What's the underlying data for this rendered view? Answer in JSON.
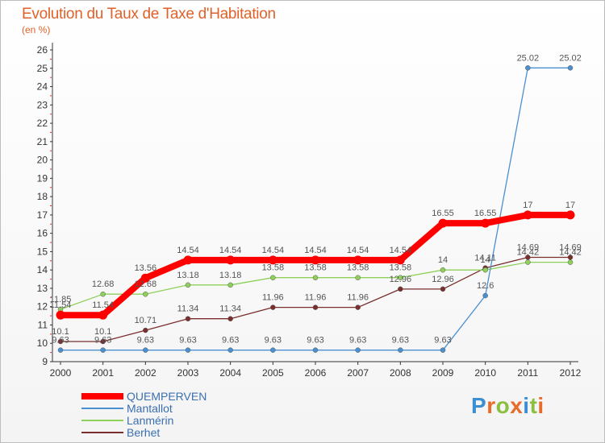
{
  "header": {
    "title": "Evolution du Taux de Taxe d'Habitation",
    "subtitle": "(en %)"
  },
  "logo": {
    "letters": [
      {
        "ch": "P",
        "color": "#3b8fd0"
      },
      {
        "ch": "r",
        "color": "#e86b2a"
      },
      {
        "ch": "o",
        "color": "#8bbf3f"
      },
      {
        "ch": "x",
        "color": "#e86b2a"
      },
      {
        "ch": "i",
        "color": "#3b8fd0"
      },
      {
        "ch": "t",
        "color": "#8bbf3f"
      },
      {
        "ch": "i",
        "color": "#e86b2a"
      }
    ]
  },
  "chart_data": {
    "type": "line",
    "title": "Evolution du Taux de Taxe d'Habitation",
    "subtitle": "(en %)",
    "xlabel": "",
    "ylabel": "",
    "x": [
      "2000",
      "2001",
      "2002",
      "2003",
      "2004",
      "2005",
      "2006",
      "2007",
      "2008",
      "2009",
      "2010",
      "2011",
      "2012"
    ],
    "ylim": [
      9,
      26
    ],
    "yticks": [
      9,
      10,
      11,
      12,
      13,
      14,
      15,
      16,
      17,
      18,
      19,
      20,
      21,
      22,
      23,
      24,
      25,
      26
    ],
    "grid": false,
    "legend": "bottom-left",
    "series": [
      {
        "name": "QUEMPERVEN",
        "color": "#ff0000",
        "values": [
          11.54,
          11.54,
          13.56,
          14.54,
          14.54,
          14.54,
          14.54,
          14.54,
          14.54,
          16.55,
          16.55,
          17,
          17
        ],
        "labels": [
          "11.54",
          "11.54",
          "13.56",
          "14.54",
          "14.54",
          "14.54",
          "14.54",
          "14.54",
          "14.54",
          "16.55",
          "16.55",
          "17",
          "17"
        ]
      },
      {
        "name": "Mantallot",
        "color": "#4a90d0",
        "values": [
          9.63,
          9.63,
          9.63,
          9.63,
          9.63,
          9.63,
          9.63,
          9.63,
          9.63,
          9.63,
          12.6,
          25.02,
          25.02
        ],
        "labels": [
          "9.63",
          "9.63",
          "9.63",
          "9.63",
          "9.63",
          "9.63",
          "9.63",
          "9.63",
          "9.63",
          "9.63",
          "12.6",
          "25.02",
          "25.02"
        ]
      },
      {
        "name": "Lanmérin",
        "color": "#8fd05a",
        "values": [
          11.85,
          12.68,
          12.68,
          13.18,
          13.18,
          13.58,
          13.58,
          13.58,
          13.58,
          14,
          14,
          14.42,
          14.42
        ],
        "labels": [
          "11.85",
          "12.68",
          "12.68",
          "13.18",
          "13.18",
          "13.58",
          "13.58",
          "13.58",
          "13.58",
          "14",
          "14",
          "14.42",
          "14.42"
        ]
      },
      {
        "name": "Berhet",
        "color": "#7a2e2e",
        "values": [
          10.1,
          10.1,
          10.71,
          11.34,
          11.34,
          11.96,
          11.96,
          11.96,
          12.96,
          12.96,
          14.11,
          14.69,
          14.69
        ],
        "labels": [
          "10.1",
          "10.1",
          "10.71",
          "11.34",
          "11.34",
          "11.96",
          "11.96",
          "11.96",
          "12.96",
          "12.96",
          "14.11",
          "14.69",
          "14.69"
        ]
      }
    ]
  }
}
